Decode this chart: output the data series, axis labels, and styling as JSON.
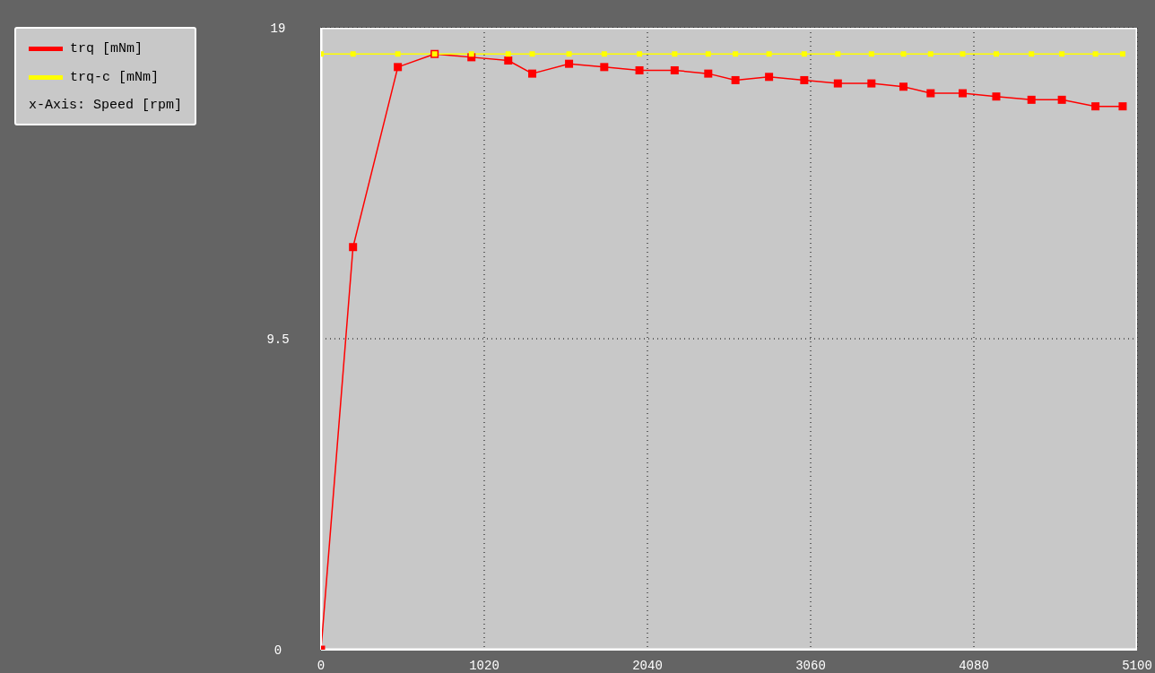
{
  "chart_data": {
    "type": "line",
    "annotations": [
      "x-Axis: Speed [rpm]"
    ],
    "x": [
      0,
      200,
      480,
      710,
      940,
      1170,
      1320,
      1550,
      1770,
      1990,
      2210,
      2420,
      2590,
      2800,
      3020,
      3230,
      3440,
      3640,
      3810,
      4010,
      4220,
      4440,
      4630,
      4840,
      5010
    ],
    "series": [
      {
        "name": "trq [mNm]",
        "color": "#ff0000",
        "values": [
          0,
          12.3,
          17.8,
          18.2,
          18.1,
          18.0,
          17.6,
          17.9,
          17.8,
          17.7,
          17.7,
          17.6,
          17.4,
          17.5,
          17.4,
          17.3,
          17.3,
          17.2,
          17.0,
          17.0,
          16.9,
          16.8,
          16.8,
          16.6,
          16.6
        ]
      },
      {
        "name": "trq-c [mNm]",
        "color": "#ffff00",
        "values": [
          18.2,
          18.2,
          18.2,
          18.2,
          18.2,
          18.2,
          18.2,
          18.2,
          18.2,
          18.2,
          18.2,
          18.2,
          18.2,
          18.2,
          18.2,
          18.2,
          18.2,
          18.2,
          18.2,
          18.2,
          18.2,
          18.2,
          18.2,
          18.2,
          18.2
        ]
      }
    ],
    "xlim": [
      0,
      5100
    ],
    "xticks": [
      0,
      1020,
      2040,
      3060,
      4080,
      5100
    ],
    "ylim": [
      0,
      19
    ],
    "yticks": [
      0,
      9.5,
      19
    ],
    "grid": true,
    "legend": "top left",
    "marker": "square",
    "line_style": "solid"
  }
}
